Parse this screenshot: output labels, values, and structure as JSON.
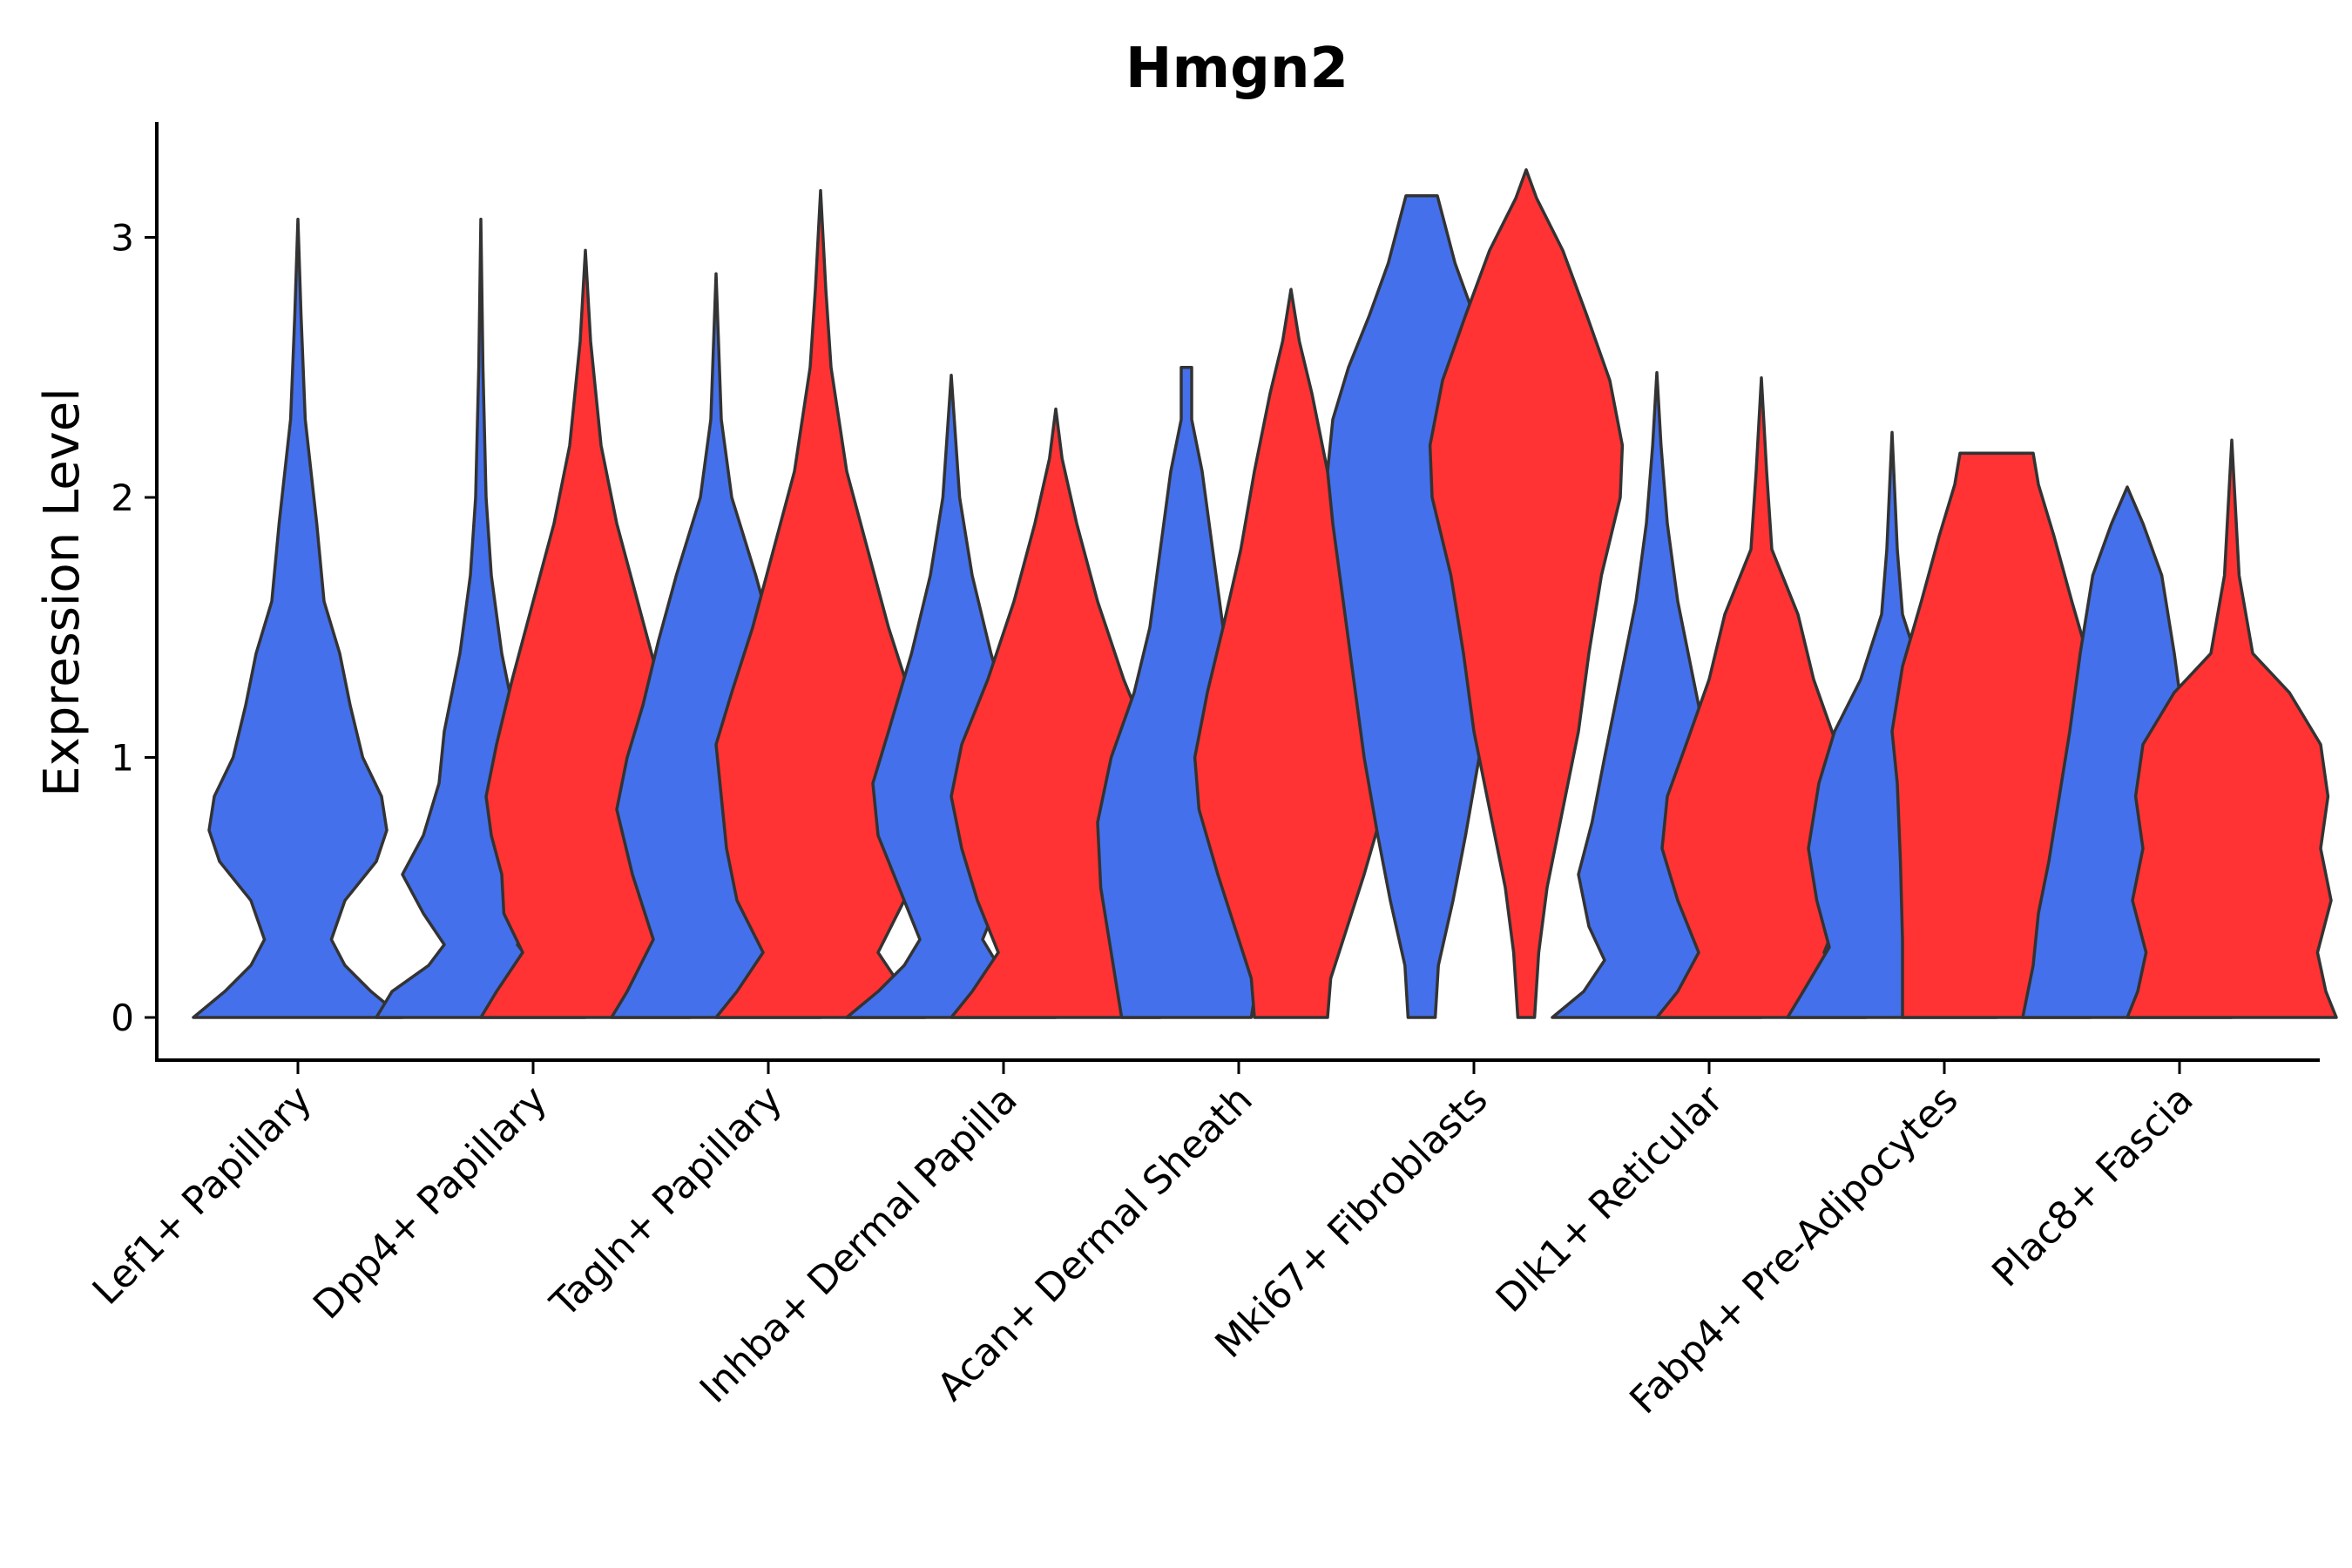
{
  "chart_data": {
    "type": "violin",
    "title": "Hmgn2",
    "xlabel": "",
    "ylabel": "Expression Level",
    "ylim": [
      -0.16,
      3.42
    ],
    "yticks": [
      0,
      1,
      2,
      3
    ],
    "grid": false,
    "legend": "none",
    "series_colors": {
      "group_a": "#4570EB",
      "group_b": "#FF3333"
    },
    "categories": [
      "Lef1+ Papillary",
      "Dpp4+ Papillary",
      "Tagln+ Papillary",
      "Inhba+ Dermal Papilla",
      "Acan+ Dermal Sheath",
      "Mki67+ Fibroblasts",
      "Dlk1+ Reticular",
      "Fabp4+ Pre-Adipocytes",
      "Plac8+ Fascia"
    ],
    "violins": [
      {
        "category": 0,
        "series": "group_a",
        "min": 0,
        "max": 3.07,
        "profile": [
          [
            0,
            1.0
          ],
          [
            0.1,
            0.7
          ],
          [
            0.2,
            0.45
          ],
          [
            0.3,
            0.32
          ],
          [
            0.45,
            0.45
          ],
          [
            0.6,
            0.75
          ],
          [
            0.72,
            0.85
          ],
          [
            0.85,
            0.8
          ],
          [
            1.0,
            0.62
          ],
          [
            1.2,
            0.5
          ],
          [
            1.4,
            0.4
          ],
          [
            1.6,
            0.25
          ],
          [
            1.9,
            0.18
          ],
          [
            2.3,
            0.07
          ],
          [
            2.7,
            0.03
          ],
          [
            3.07,
            0.0
          ]
        ]
      },
      {
        "category": 1,
        "series": "group_a",
        "min": 0,
        "max": 3.07,
        "profile": [
          [
            0,
            1.0
          ],
          [
            0.1,
            0.85
          ],
          [
            0.2,
            0.5
          ],
          [
            0.28,
            0.35
          ],
          [
            0.4,
            0.55
          ],
          [
            0.55,
            0.75
          ],
          [
            0.7,
            0.55
          ],
          [
            0.9,
            0.4
          ],
          [
            1.1,
            0.35
          ],
          [
            1.4,
            0.2
          ],
          [
            1.7,
            0.1
          ],
          [
            2.0,
            0.05
          ],
          [
            2.5,
            0.02
          ],
          [
            3.07,
            0.0
          ]
        ]
      },
      {
        "category": 1,
        "series": "group_b",
        "min": 0,
        "max": 2.95,
        "profile": [
          [
            0,
            1.0
          ],
          [
            0.1,
            0.85
          ],
          [
            0.25,
            0.6
          ],
          [
            0.4,
            0.78
          ],
          [
            0.55,
            0.8
          ],
          [
            0.7,
            0.9
          ],
          [
            0.85,
            0.95
          ],
          [
            1.05,
            0.85
          ],
          [
            1.3,
            0.7
          ],
          [
            1.6,
            0.5
          ],
          [
            1.9,
            0.3
          ],
          [
            2.2,
            0.15
          ],
          [
            2.6,
            0.05
          ],
          [
            2.95,
            0.0
          ]
        ]
      },
      {
        "category": 2,
        "series": "group_a",
        "min": 0,
        "max": 2.86,
        "profile": [
          [
            0,
            1.0
          ],
          [
            0.1,
            0.85
          ],
          [
            0.3,
            0.6
          ],
          [
            0.55,
            0.8
          ],
          [
            0.8,
            0.95
          ],
          [
            1.0,
            0.85
          ],
          [
            1.2,
            0.7
          ],
          [
            1.45,
            0.55
          ],
          [
            1.7,
            0.38
          ],
          [
            2.0,
            0.15
          ],
          [
            2.3,
            0.05
          ],
          [
            2.86,
            0.0
          ]
        ]
      },
      {
        "category": 2,
        "series": "group_b",
        "min": 0,
        "max": 3.18,
        "profile": [
          [
            0,
            1.0
          ],
          [
            0.1,
            0.8
          ],
          [
            0.25,
            0.55
          ],
          [
            0.45,
            0.8
          ],
          [
            0.65,
            0.9
          ],
          [
            0.85,
            0.95
          ],
          [
            1.05,
            1.0
          ],
          [
            1.25,
            0.85
          ],
          [
            1.5,
            0.65
          ],
          [
            1.8,
            0.45
          ],
          [
            2.1,
            0.25
          ],
          [
            2.5,
            0.1
          ],
          [
            2.8,
            0.05
          ],
          [
            3.18,
            0.0
          ]
        ]
      },
      {
        "category": 3,
        "series": "group_a",
        "min": 0,
        "max": 2.47,
        "profile": [
          [
            0,
            1.0
          ],
          [
            0.1,
            0.7
          ],
          [
            0.2,
            0.45
          ],
          [
            0.3,
            0.3
          ],
          [
            0.45,
            0.45
          ],
          [
            0.7,
            0.7
          ],
          [
            0.9,
            0.75
          ],
          [
            1.1,
            0.6
          ],
          [
            1.4,
            0.38
          ],
          [
            1.7,
            0.2
          ],
          [
            2.0,
            0.08
          ],
          [
            2.47,
            0.0
          ]
        ]
      },
      {
        "category": 3,
        "series": "group_b",
        "min": 0,
        "max": 2.34,
        "profile": [
          [
            0,
            1.0
          ],
          [
            0.1,
            0.8
          ],
          [
            0.25,
            0.55
          ],
          [
            0.45,
            0.75
          ],
          [
            0.65,
            0.9
          ],
          [
            0.85,
            1.0
          ],
          [
            1.05,
            0.9
          ],
          [
            1.3,
            0.65
          ],
          [
            1.6,
            0.4
          ],
          [
            1.9,
            0.2
          ],
          [
            2.15,
            0.06
          ],
          [
            2.34,
            0.0
          ]
        ]
      },
      {
        "category": 4,
        "series": "group_a",
        "min": 0,
        "max": 2.5,
        "profile": [
          [
            0,
            0.62
          ],
          [
            0.25,
            0.72
          ],
          [
            0.5,
            0.82
          ],
          [
            0.75,
            0.85
          ],
          [
            1.0,
            0.72
          ],
          [
            1.25,
            0.5
          ],
          [
            1.5,
            0.35
          ],
          [
            1.8,
            0.25
          ],
          [
            2.1,
            0.15
          ],
          [
            2.3,
            0.05
          ],
          [
            2.5,
            0.05
          ]
        ]
      },
      {
        "category": 4,
        "series": "group_b",
        "min": 0,
        "max": 2.8,
        "profile": [
          [
            0,
            0.35
          ],
          [
            0.15,
            0.38
          ],
          [
            0.3,
            0.5
          ],
          [
            0.55,
            0.7
          ],
          [
            0.8,
            0.88
          ],
          [
            1.0,
            0.92
          ],
          [
            1.25,
            0.8
          ],
          [
            1.5,
            0.65
          ],
          [
            1.8,
            0.48
          ],
          [
            2.1,
            0.35
          ],
          [
            2.4,
            0.2
          ],
          [
            2.6,
            0.08
          ],
          [
            2.8,
            0.0
          ]
        ]
      },
      {
        "category": 5,
        "series": "group_a",
        "min": 0,
        "max": 3.16,
        "profile": [
          [
            0,
            0.13
          ],
          [
            0.2,
            0.16
          ],
          [
            0.45,
            0.3
          ],
          [
            0.7,
            0.42
          ],
          [
            1.0,
            0.55
          ],
          [
            1.3,
            0.65
          ],
          [
            1.6,
            0.75
          ],
          [
            1.9,
            0.85
          ],
          [
            2.1,
            0.9
          ],
          [
            2.3,
            0.85
          ],
          [
            2.5,
            0.7
          ],
          [
            2.7,
            0.5
          ],
          [
            2.9,
            0.32
          ],
          [
            3.16,
            0.15
          ]
        ]
      },
      {
        "category": 5,
        "series": "group_b",
        "min": 0,
        "max": 3.26,
        "profile": [
          [
            0,
            0.08
          ],
          [
            0.25,
            0.12
          ],
          [
            0.5,
            0.2
          ],
          [
            0.8,
            0.35
          ],
          [
            1.1,
            0.5
          ],
          [
            1.4,
            0.6
          ],
          [
            1.7,
            0.72
          ],
          [
            2.0,
            0.9
          ],
          [
            2.2,
            0.92
          ],
          [
            2.45,
            0.8
          ],
          [
            2.7,
            0.58
          ],
          [
            2.95,
            0.35
          ],
          [
            3.15,
            0.1
          ],
          [
            3.26,
            0.0
          ]
        ]
      },
      {
        "category": 6,
        "series": "group_a",
        "min": 0,
        "max": 2.48,
        "profile": [
          [
            0,
            1.0
          ],
          [
            0.1,
            0.7
          ],
          [
            0.22,
            0.5
          ],
          [
            0.35,
            0.65
          ],
          [
            0.55,
            0.75
          ],
          [
            0.75,
            0.62
          ],
          [
            1.0,
            0.5
          ],
          [
            1.3,
            0.35
          ],
          [
            1.6,
            0.2
          ],
          [
            1.9,
            0.1
          ],
          [
            2.2,
            0.04
          ],
          [
            2.48,
            0.0
          ]
        ]
      },
      {
        "category": 6,
        "series": "group_b",
        "min": 0,
        "max": 2.46,
        "profile": [
          [
            0,
            1.0
          ],
          [
            0.1,
            0.8
          ],
          [
            0.25,
            0.6
          ],
          [
            0.45,
            0.8
          ],
          [
            0.65,
            0.95
          ],
          [
            0.85,
            0.9
          ],
          [
            1.05,
            0.72
          ],
          [
            1.3,
            0.5
          ],
          [
            1.55,
            0.35
          ],
          [
            1.8,
            0.1
          ],
          [
            2.1,
            0.05
          ],
          [
            2.46,
            0.0
          ]
        ]
      },
      {
        "category": 7,
        "series": "group_a",
        "min": 0,
        "max": 2.25,
        "profile": [
          [
            0,
            1.0
          ],
          [
            0.1,
            0.85
          ],
          [
            0.27,
            0.6
          ],
          [
            0.45,
            0.72
          ],
          [
            0.65,
            0.8
          ],
          [
            0.9,
            0.7
          ],
          [
            1.1,
            0.55
          ],
          [
            1.3,
            0.3
          ],
          [
            1.55,
            0.1
          ],
          [
            1.8,
            0.05
          ],
          [
            2.25,
            0.0
          ]
        ]
      },
      {
        "category": 7,
        "series": "group_b",
        "min": 0,
        "max": 2.17,
        "profile": [
          [
            0,
            0.9
          ],
          [
            0.3,
            0.9
          ],
          [
            0.6,
            0.92
          ],
          [
            0.9,
            0.95
          ],
          [
            1.1,
            1.0
          ],
          [
            1.35,
            0.9
          ],
          [
            1.6,
            0.72
          ],
          [
            1.85,
            0.55
          ],
          [
            2.05,
            0.4
          ],
          [
            2.17,
            0.35
          ]
        ]
      },
      {
        "category": 8,
        "series": "group_a",
        "min": 0,
        "max": 2.04,
        "profile": [
          [
            0,
            1.0
          ],
          [
            0.2,
            0.9
          ],
          [
            0.4,
            0.85
          ],
          [
            0.6,
            0.75
          ],
          [
            0.85,
            0.65
          ],
          [
            1.1,
            0.55
          ],
          [
            1.4,
            0.45
          ],
          [
            1.7,
            0.33
          ],
          [
            1.9,
            0.15
          ],
          [
            2.04,
            0.0
          ]
        ]
      },
      {
        "category": 8,
        "series": "group_b",
        "min": 0,
        "max": 2.22,
        "profile": [
          [
            0,
            1.0
          ],
          [
            0.1,
            0.9
          ],
          [
            0.25,
            0.82
          ],
          [
            0.45,
            0.95
          ],
          [
            0.65,
            0.85
          ],
          [
            0.85,
            0.92
          ],
          [
            1.05,
            0.85
          ],
          [
            1.25,
            0.55
          ],
          [
            1.4,
            0.2
          ],
          [
            1.7,
            0.07
          ],
          [
            2.22,
            0.0
          ]
        ]
      }
    ]
  }
}
